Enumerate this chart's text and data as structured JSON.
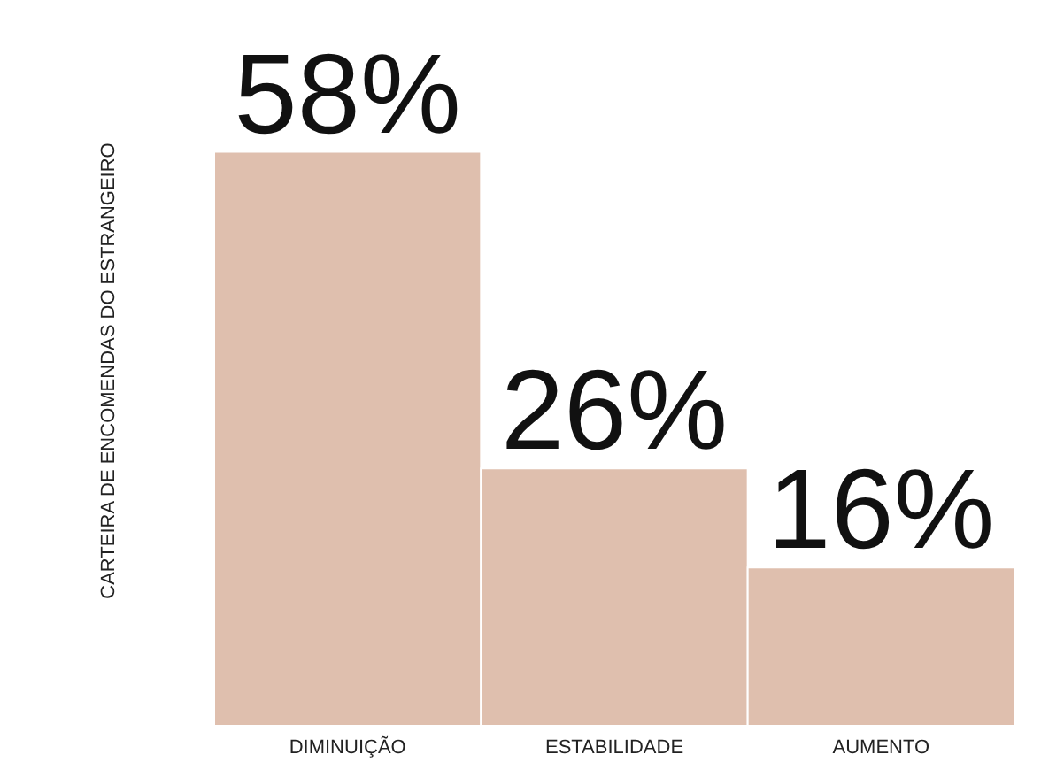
{
  "chart_data": {
    "type": "bar",
    "ylabel": "CARTEIRA DE ENCOMENDAS DO ESTRANGEIRO",
    "categories": [
      "DIMINUIÇÃO",
      "ESTABILIDADE",
      "AUMENTO"
    ],
    "values": [
      58,
      26,
      16
    ],
    "value_labels": [
      "58%",
      "26%",
      "16%"
    ],
    "color": "#dfbfae",
    "grid": false
  }
}
